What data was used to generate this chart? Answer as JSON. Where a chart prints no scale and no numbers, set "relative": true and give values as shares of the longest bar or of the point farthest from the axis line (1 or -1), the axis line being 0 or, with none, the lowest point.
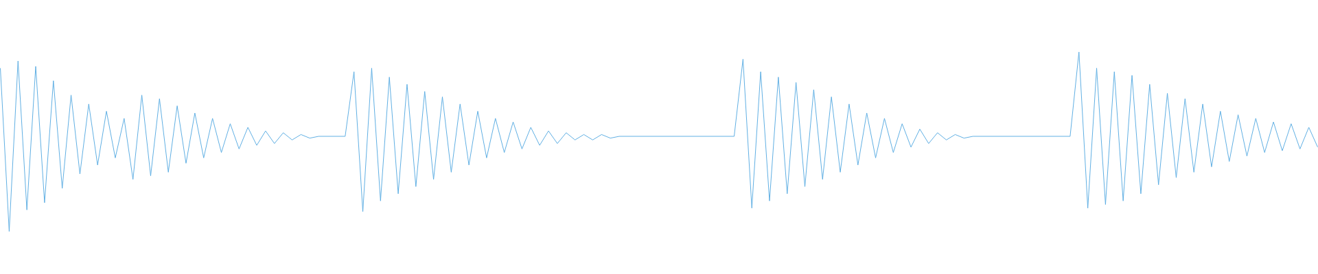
{
  "chart_data": {
    "type": "line",
    "relative": true,
    "color": "#5dade2",
    "marker": "none",
    "categories": [
      null,
      null,
      null,
      null,
      null,
      null,
      null,
      null,
      null,
      null,
      null,
      null,
      null,
      null,
      null,
      null,
      null,
      null,
      null,
      null,
      null,
      null,
      null,
      null,
      null,
      null,
      null,
      null,
      null,
      null,
      null,
      null,
      null,
      null,
      null,
      null,
      null,
      null,
      null,
      null,
      null,
      null,
      null,
      null,
      null,
      null,
      null,
      null,
      null,
      null,
      null,
      null,
      null,
      null,
      null,
      null,
      null,
      null,
      null,
      null,
      null,
      null,
      null,
      null,
      null,
      null,
      null,
      null,
      null,
      null,
      null,
      null,
      null,
      null,
      null,
      null,
      null,
      null,
      null,
      null,
      null,
      null,
      null,
      null,
      null,
      null,
      null,
      null,
      null,
      null,
      null,
      null,
      null,
      null,
      null,
      null,
      null,
      null,
      null,
      null,
      null,
      null,
      null,
      null,
      null,
      null,
      null,
      null,
      null,
      null,
      null,
      null,
      null,
      null,
      null,
      null,
      null,
      null,
      null,
      null,
      null,
      null,
      null,
      null,
      null,
      null,
      null,
      null,
      null,
      null,
      null,
      null,
      null,
      null,
      null,
      null,
      null,
      null,
      null,
      null,
      null,
      null,
      null,
      null,
      null,
      null,
      null,
      null,
      null,
      null
    ],
    "values": [
      0.91,
      0,
      0.95,
      0.12,
      0.92,
      0.16,
      0.84,
      0.24,
      0.76,
      0.32,
      0.71,
      0.37,
      0.67,
      0.41,
      0.63,
      0.29,
      0.76,
      0.31,
      0.74,
      0.33,
      0.7,
      0.38,
      0.66,
      0.41,
      0.63,
      0.44,
      0.6,
      0.46,
      0.58,
      0.48,
      0.56,
      0.49,
      0.55,
      0.51,
      0.54,
      0.52,
      0.53,
      0.53,
      0.53,
      0.53,
      0.89,
      0.11,
      0.91,
      0.17,
      0.86,
      0.21,
      0.82,
      0.25,
      0.78,
      0.29,
      0.75,
      0.33,
      0.71,
      0.37,
      0.67,
      0.41,
      0.63,
      0.44,
      0.61,
      0.46,
      0.58,
      0.48,
      0.56,
      0.49,
      0.55,
      0.51,
      0.54,
      0.51,
      0.54,
      0.52,
      0.53,
      0.53,
      0.53,
      0.53,
      0.53,
      0.53,
      0.53,
      0.53,
      0.53,
      0.53,
      0.53,
      0.53,
      0.53,
      0.53,
      0.96,
      0.13,
      0.89,
      0.17,
      0.86,
      0.21,
      0.83,
      0.25,
      0.79,
      0.29,
      0.75,
      0.33,
      0.71,
      0.37,
      0.66,
      0.41,
      0.63,
      0.44,
      0.6,
      0.47,
      0.57,
      0.49,
      0.55,
      0.51,
      0.54,
      0.52,
      0.53,
      0.53,
      0.53,
      0.53,
      0.53,
      0.53,
      0.53,
      0.53,
      0.53,
      0.53,
      0.53,
      0.53,
      1.0,
      0.13,
      0.91,
      0.15,
      0.89,
      0.17,
      0.87,
      0.21,
      0.82,
      0.26,
      0.77,
      0.3,
      0.74,
      0.33,
      0.71,
      0.36,
      0.67,
      0.39,
      0.65,
      0.42,
      0.63,
      0.44,
      0.61,
      0.45,
      0.6,
      0.46,
      0.58,
      0.47
    ]
  }
}
